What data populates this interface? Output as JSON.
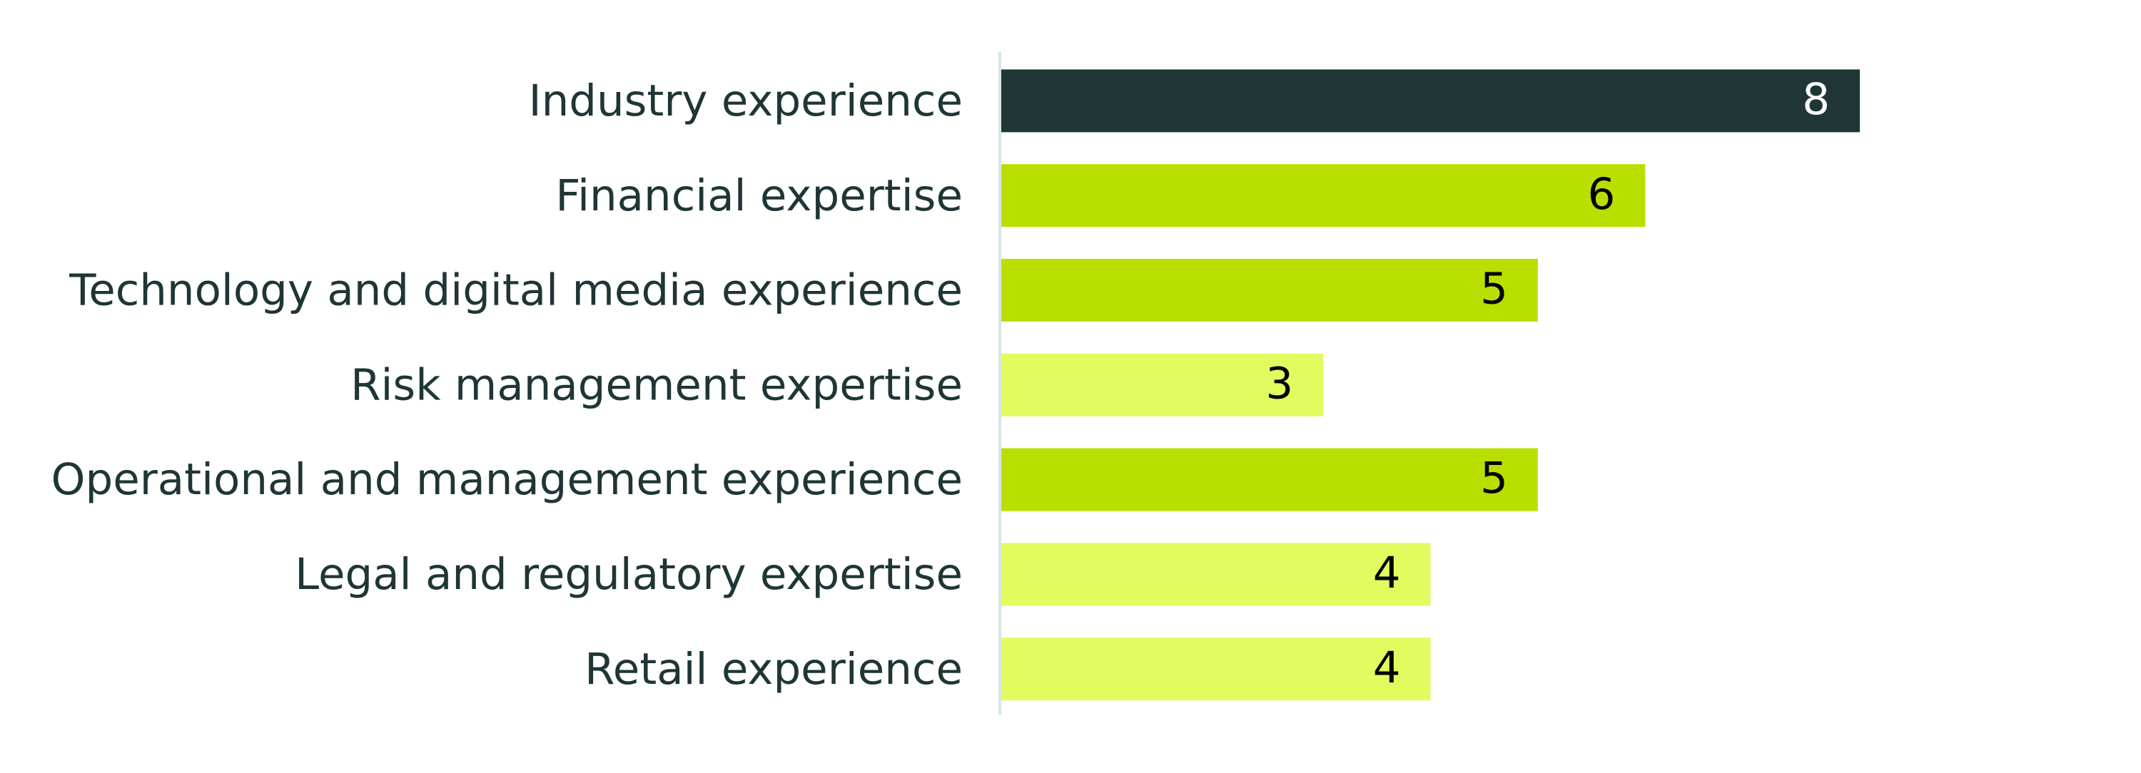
{
  "chart_data": {
    "type": "hbar",
    "categories": [
      "Industry experience",
      "Financial expertise",
      "Technology and digital media experience",
      "Risk management expertise",
      "Operational and management experience",
      "Legal and regulatory expertise",
      "Retail experience"
    ],
    "values": [
      8,
      6,
      5,
      3,
      5,
      4,
      4
    ],
    "colors": [
      "#1f3536",
      "#b8df00",
      "#b8df00",
      "#e2fb5f",
      "#b8df00",
      "#e2fb5f",
      "#e2fb5f"
    ],
    "xlim": [
      0,
      8
    ]
  }
}
